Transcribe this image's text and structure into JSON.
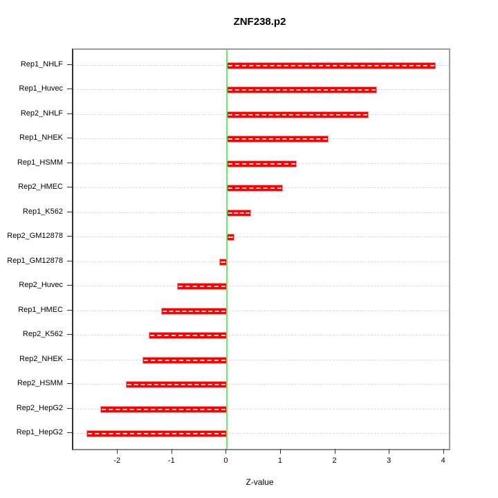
{
  "chart_data": {
    "type": "bar",
    "orientation": "horizontal",
    "title": "ZNF238.p2",
    "xlabel": "Z-value",
    "categories": [
      "Rep1_NHLF",
      "Rep1_Huvec",
      "Rep2_NHLF",
      "Rep1_NHEK",
      "Rep1_HSMM",
      "Rep2_HMEC",
      "Rep1_K562",
      "Rep2_GM12878",
      "Rep1_GM12878",
      "Rep2_Huvec",
      "Rep1_HMEC",
      "Rep2_K562",
      "Rep2_NHEK",
      "Rep2_HSMM",
      "Rep2_HepG2",
      "Rep1_HepG2"
    ],
    "values": [
      3.84,
      2.76,
      2.6,
      1.86,
      1.28,
      1.02,
      0.44,
      0.13,
      -0.15,
      -0.92,
      -1.21,
      -1.44,
      -1.56,
      -1.86,
      -2.34,
      -2.59
    ],
    "xticks": [
      -2,
      -1,
      0,
      1,
      2,
      3,
      4
    ],
    "xlim": [
      -2.83,
      4.08
    ],
    "grid": true,
    "legend": "none",
    "colors": {
      "bar": "#FF0000",
      "zero_line": "#66EE66",
      "grid_line": "#D9D9D9",
      "axis_box": "#9C9C9C",
      "axis_line": "#2F2F2F",
      "text": "#000000"
    }
  }
}
